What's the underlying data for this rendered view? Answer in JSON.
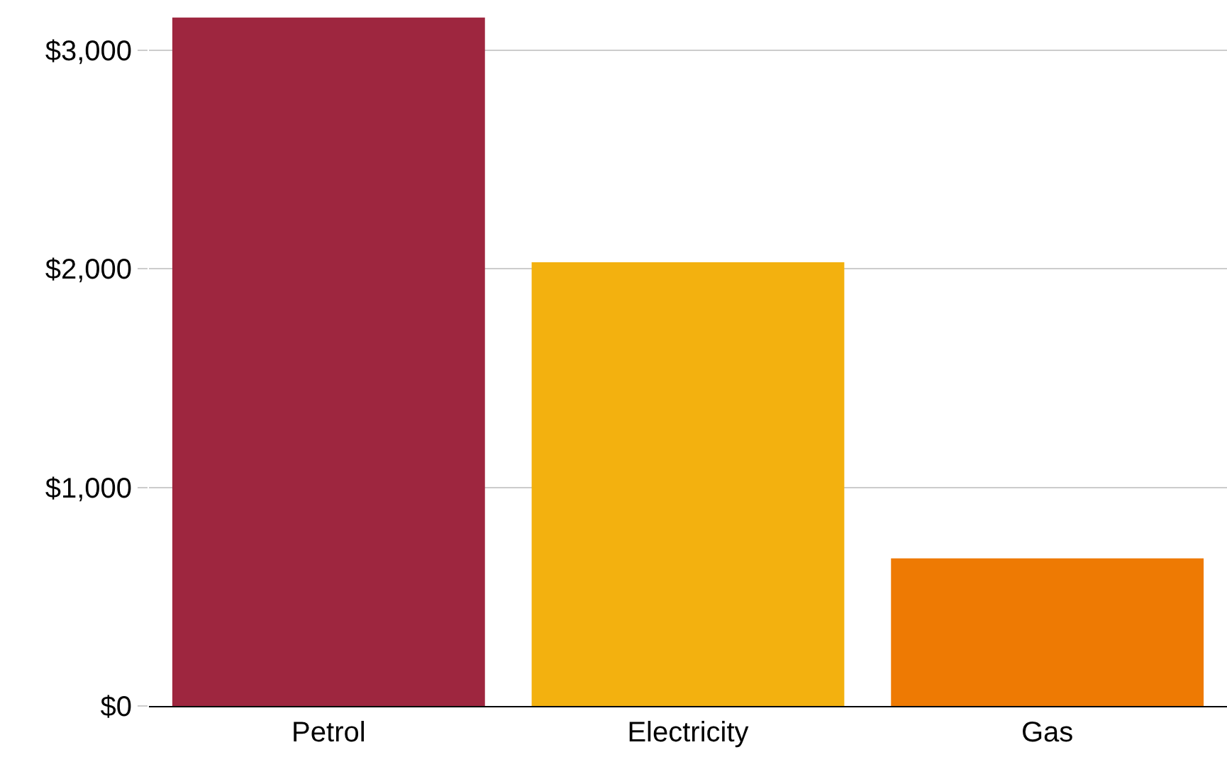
{
  "chart_data": {
    "type": "bar",
    "categories": [
      "Petrol",
      "Electricity",
      "Gas"
    ],
    "values": [
      3150,
      2030,
      675
    ],
    "colors": [
      "#9e263f",
      "#f3b10f",
      "#ee7a03"
    ],
    "ylim": [
      0,
      3230
    ],
    "yticks": [
      {
        "value": 0,
        "label": "$0"
      },
      {
        "value": 1000,
        "label": "$1,000"
      },
      {
        "value": 2000,
        "label": "$2,000"
      },
      {
        "value": 3000,
        "label": "$3,000"
      }
    ],
    "grid": "y"
  }
}
